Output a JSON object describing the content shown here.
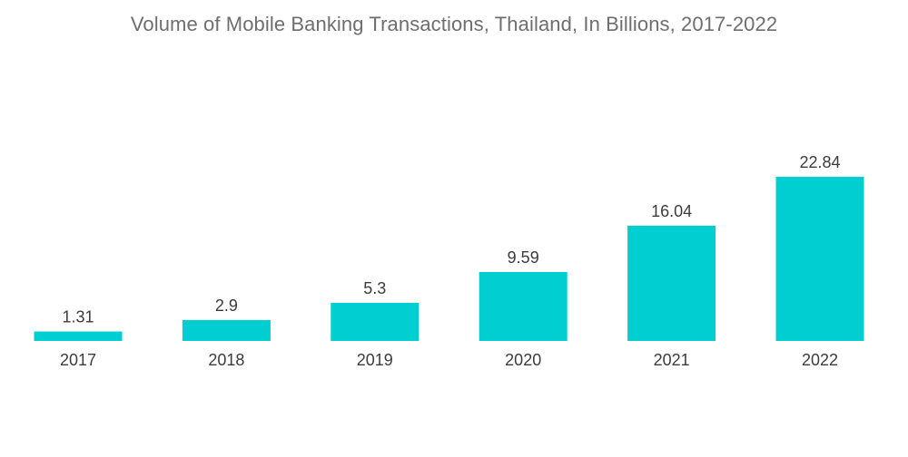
{
  "chart_data": {
    "type": "bar",
    "title": "Volume of Mobile Banking Transactions, Thailand, In Billions, 2017-2022",
    "xlabel": "",
    "ylabel": "",
    "categories": [
      "2017",
      "2018",
      "2019",
      "2020",
      "2021",
      "2022"
    ],
    "values": [
      1.31,
      2.9,
      5.3,
      9.59,
      16.04,
      22.84
    ],
    "value_labels": [
      "1.31",
      "2.9",
      "5.3",
      "9.59",
      "16.04",
      "22.84"
    ],
    "ylim": [
      0,
      22.84
    ],
    "grid": false,
    "legend": "none",
    "colors": {
      "bar": "#00CED1",
      "baseline": "#cccccc"
    }
  }
}
